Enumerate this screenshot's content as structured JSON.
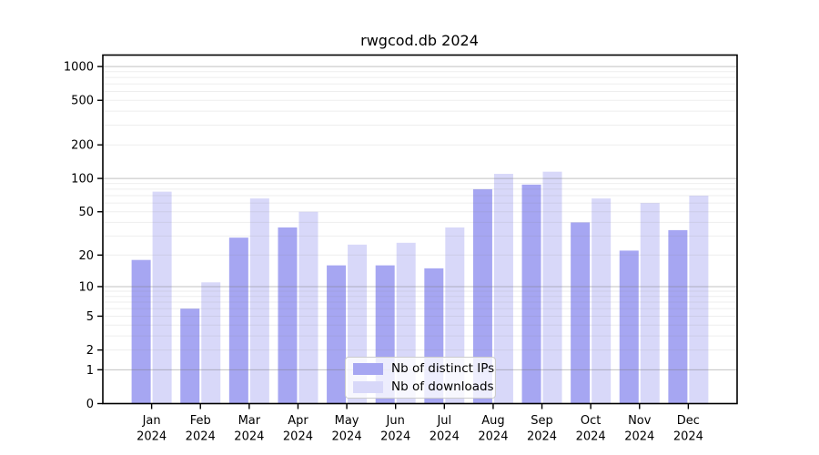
{
  "chart_data": {
    "type": "bar",
    "title": "rwgcod.db 2024",
    "categories": [
      "Jan",
      "Feb",
      "Mar",
      "Apr",
      "May",
      "Jun",
      "Jul",
      "Aug",
      "Sep",
      "Oct",
      "Nov",
      "Dec"
    ],
    "year_label": "2024",
    "series": [
      {
        "name": "Nb of distinct IPs",
        "color": "#a6a6f2",
        "values": [
          18,
          6,
          29,
          36,
          16,
          16,
          15,
          80,
          88,
          40,
          22,
          34
        ]
      },
      {
        "name": "Nb of downloads",
        "color": "#d8d8f9",
        "values": [
          76,
          11,
          66,
          50,
          25,
          26,
          36,
          110,
          115,
          66,
          60,
          70
        ]
      }
    ],
    "yscale": "log1p",
    "ylim": [
      0,
      1266
    ],
    "yticks": [
      0,
      1,
      2,
      5,
      10,
      20,
      50,
      100,
      200,
      500,
      1000
    ],
    "major_gridlines": [
      1,
      10,
      100,
      1000
    ],
    "grid": true,
    "legend_position": "inside-bottom-center",
    "colors": {
      "major_grid": "rgba(120,120,120,0.45)",
      "minor_grid": "rgba(120,120,120,0.13)",
      "axis": "#000000",
      "text": "#000000"
    }
  }
}
